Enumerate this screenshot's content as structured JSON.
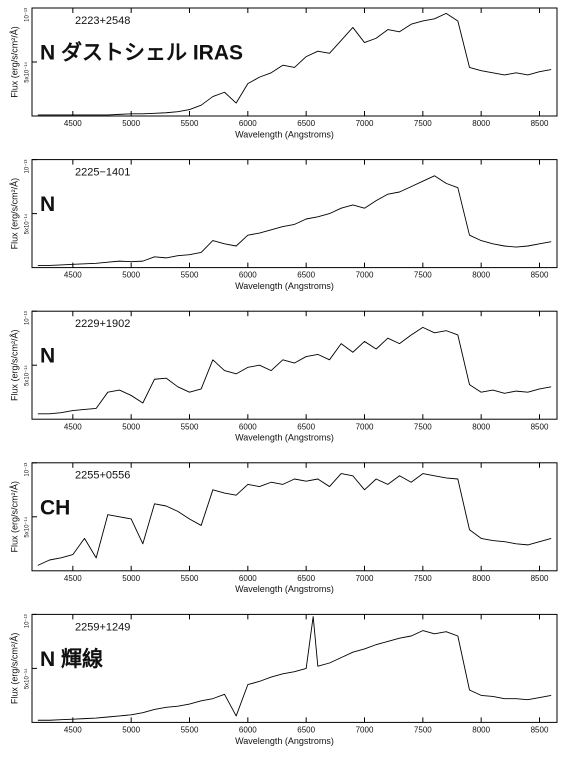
{
  "chart_data": [
    {
      "type": "line",
      "title": "2223+2548",
      "annotation": "N ダストシェル IRAS",
      "xlabel": "Wavelength (Angstroms)",
      "ylabel": "Flux (erg/s/cm²/Å)",
      "xlim": [
        4150,
        8650
      ],
      "ylim": [
        0,
        1e-13
      ],
      "xticks": [
        4500,
        5000,
        5500,
        6000,
        6500,
        7000,
        7500,
        8000,
        8500
      ],
      "yticks": [
        {
          "value": 5e-14,
          "label": "5x10⁻¹⁴"
        },
        {
          "value": 1e-13,
          "label": "10⁻¹³"
        }
      ],
      "color": "#000000",
      "x": [
        4200,
        4300,
        4400,
        4500,
        4600,
        4700,
        4800,
        4900,
        5000,
        5100,
        5200,
        5300,
        5400,
        5500,
        5600,
        5700,
        5800,
        5900,
        6000,
        6100,
        6200,
        6300,
        6400,
        6500,
        6600,
        6700,
        6800,
        6900,
        7000,
        7100,
        7200,
        7300,
        7400,
        7500,
        7600,
        7700,
        7800,
        7900,
        8000,
        8100,
        8200,
        8300,
        8400,
        8500,
        8600
      ],
      "values": [
        1e-15,
        1e-15,
        1e-15,
        1e-15,
        1e-15,
        1e-15,
        1e-15,
        1.5e-15,
        2e-15,
        2e-15,
        2.5e-15,
        3e-15,
        4e-15,
        6e-15,
        1e-14,
        1.8e-14,
        2.2e-14,
        1.2e-14,
        3e-14,
        3.6e-14,
        4e-14,
        4.7e-14,
        4.5e-14,
        5.5e-14,
        6e-14,
        5.8e-14,
        7e-14,
        8.2e-14,
        6.8e-14,
        7.2e-14,
        8e-14,
        7.8e-14,
        8.5e-14,
        8.8e-14,
        9e-14,
        9.5e-14,
        8.8e-14,
        4.5e-14,
        4.2e-14,
        4e-14,
        3.8e-14,
        4e-14,
        3.8e-14,
        4.1e-14,
        4.3e-14
      ]
    },
    {
      "type": "line",
      "title": "2225−1401",
      "annotation": "N",
      "xlabel": "Wavelength (Angstroms)",
      "ylabel": "Flux (erg/s/cm²/Å)",
      "xlim": [
        4150,
        8650
      ],
      "ylim": [
        0,
        1e-13
      ],
      "xticks": [
        4500,
        5000,
        5500,
        6000,
        6500,
        7000,
        7500,
        8000,
        8500
      ],
      "yticks": [
        {
          "value": 5e-14,
          "label": "5x10⁻¹⁴"
        },
        {
          "value": 1e-13,
          "label": "10⁻¹³"
        }
      ],
      "color": "#000000",
      "x": [
        4200,
        4300,
        4400,
        4500,
        4600,
        4700,
        4800,
        4900,
        5000,
        5100,
        5200,
        5300,
        5400,
        5500,
        5600,
        5700,
        5800,
        5900,
        6000,
        6100,
        6200,
        6300,
        6400,
        6500,
        6600,
        6700,
        6800,
        6900,
        7000,
        7100,
        7200,
        7300,
        7400,
        7500,
        7600,
        7700,
        7800,
        7900,
        8000,
        8100,
        8200,
        8300,
        8400,
        8500,
        8600
      ],
      "values": [
        2e-15,
        2e-15,
        2.5e-15,
        3e-15,
        3.5e-15,
        4e-15,
        5e-15,
        6e-15,
        5.5e-15,
        6e-15,
        1e-14,
        9e-15,
        1.1e-14,
        1.2e-14,
        1.4e-14,
        2.5e-14,
        2.2e-14,
        2e-14,
        3e-14,
        3.2e-14,
        3.5e-14,
        3.8e-14,
        4e-14,
        4.5e-14,
        4.7e-14,
        5e-14,
        5.5e-14,
        5.8e-14,
        5.5e-14,
        6.2e-14,
        6.8e-14,
        7e-14,
        7.5e-14,
        8e-14,
        8.5e-14,
        7.8e-14,
        7.4e-14,
        3e-14,
        2.5e-14,
        2.2e-14,
        2e-14,
        1.9e-14,
        2e-14,
        2.2e-14,
        2.4e-14
      ]
    },
    {
      "type": "line",
      "title": "2229+1902",
      "annotation": "N",
      "xlabel": "Wavelength (Angstroms)",
      "ylabel": "Flux (erg/s/cm²/Å)",
      "xlim": [
        4150,
        8650
      ],
      "ylim": [
        0,
        1e-13
      ],
      "xticks": [
        4500,
        5000,
        5500,
        6000,
        6500,
        7000,
        7500,
        8000,
        8500
      ],
      "yticks": [
        {
          "value": 5e-14,
          "label": "5x10⁻¹⁴"
        },
        {
          "value": 1e-13,
          "label": "10⁻¹³"
        }
      ],
      "color": "#000000",
      "x": [
        4200,
        4300,
        4400,
        4500,
        4600,
        4700,
        4800,
        4900,
        5000,
        5100,
        5200,
        5300,
        5400,
        5500,
        5600,
        5700,
        5800,
        5900,
        6000,
        6100,
        6200,
        6300,
        6400,
        6500,
        6600,
        6700,
        6800,
        6900,
        7000,
        7100,
        7200,
        7300,
        7400,
        7500,
        7600,
        7700,
        7800,
        7900,
        8000,
        8100,
        8200,
        8300,
        8400,
        8500,
        8600
      ],
      "values": [
        5e-15,
        5e-15,
        6e-15,
        8e-15,
        9e-15,
        1e-14,
        2.5e-14,
        2.7e-14,
        2.2e-14,
        1.5e-14,
        3.7e-14,
        3.8e-14,
        3e-14,
        2.5e-14,
        2.8e-14,
        5.5e-14,
        4.5e-14,
        4.2e-14,
        4.8e-14,
        5e-14,
        4.5e-14,
        5.5e-14,
        5.2e-14,
        5.8e-14,
        6e-14,
        5.5e-14,
        7e-14,
        6.2e-14,
        7.2e-14,
        6.5e-14,
        7.5e-14,
        7e-14,
        7.8e-14,
        8.5e-14,
        8e-14,
        8.2e-14,
        7.8e-14,
        3.2e-14,
        2.5e-14,
        2.7e-14,
        2.4e-14,
        2.6e-14,
        2.5e-14,
        2.8e-14,
        3e-14
      ]
    },
    {
      "type": "line",
      "title": "2255+0556",
      "annotation": "CH",
      "xlabel": "Wavelength (Angstroms)",
      "ylabel": "Flux (erg/s/cm²/Å)",
      "xlim": [
        4150,
        8650
      ],
      "ylim": [
        0,
        1e-13
      ],
      "xticks": [
        4500,
        5000,
        5500,
        6000,
        6500,
        7000,
        7500,
        8000,
        8500
      ],
      "yticks": [
        {
          "value": 5e-14,
          "label": "5x10⁻¹⁴"
        },
        {
          "value": 1e-13,
          "label": "10⁻¹³"
        }
      ],
      "color": "#000000",
      "x": [
        4200,
        4300,
        4400,
        4500,
        4600,
        4700,
        4800,
        4900,
        5000,
        5100,
        5200,
        5300,
        5400,
        5500,
        5600,
        5700,
        5800,
        5900,
        6000,
        6100,
        6200,
        6300,
        6400,
        6500,
        6600,
        6700,
        6800,
        6900,
        7000,
        7100,
        7200,
        7300,
        7400,
        7500,
        7600,
        7700,
        7800,
        7900,
        8000,
        8100,
        8200,
        8300,
        8400,
        8500,
        8600
      ],
      "values": [
        5e-15,
        1e-14,
        1.2e-14,
        1.5e-14,
        3e-14,
        1.2e-14,
        5.2e-14,
        5e-14,
        4.8e-14,
        2.5e-14,
        6.2e-14,
        6e-14,
        5.5e-14,
        4.8e-14,
        4.2e-14,
        7.5e-14,
        7.2e-14,
        7e-14,
        8e-14,
        7.8e-14,
        8.2e-14,
        8e-14,
        8.5e-14,
        8.3e-14,
        8.5e-14,
        7.8e-14,
        9e-14,
        8.8e-14,
        7.5e-14,
        8.5e-14,
        8e-14,
        8.8e-14,
        8.2e-14,
        9e-14,
        8.8e-14,
        8.6e-14,
        8.5e-14,
        3.8e-14,
        3e-14,
        2.8e-14,
        2.7e-14,
        2.5e-14,
        2.4e-14,
        2.7e-14,
        3e-14
      ]
    },
    {
      "type": "line",
      "title": "2259+1249",
      "annotation": "N 輝線",
      "xlabel": "Wavelength (Angstroms)",
      "ylabel": "Flux (erg/s/cm²/Å)",
      "xlim": [
        4150,
        8650
      ],
      "ylim": [
        0,
        1e-13
      ],
      "xticks": [
        4500,
        5000,
        5500,
        6000,
        6500,
        7000,
        7500,
        8000,
        8500
      ],
      "yticks": [
        {
          "value": 5e-14,
          "label": "5x10⁻¹⁴"
        },
        {
          "value": 1e-13,
          "label": "10⁻¹³"
        }
      ],
      "color": "#000000",
      "x": [
        4200,
        4300,
        4400,
        4500,
        4600,
        4700,
        4800,
        4900,
        5000,
        5100,
        5200,
        5300,
        5400,
        5500,
        5600,
        5700,
        5800,
        5900,
        6000,
        6100,
        6200,
        6300,
        6400,
        6500,
        6560,
        6600,
        6700,
        6800,
        6900,
        7000,
        7100,
        7200,
        7300,
        7400,
        7500,
        7600,
        7700,
        7800,
        7900,
        8000,
        8100,
        8200,
        8300,
        8400,
        8500,
        8600
      ],
      "values": [
        2e-15,
        2e-15,
        2.5e-15,
        3e-15,
        3.5e-15,
        4e-15,
        5e-15,
        6e-15,
        7e-15,
        9e-15,
        1.2e-14,
        1.4e-14,
        1.5e-14,
        1.7e-14,
        2e-14,
        2.2e-14,
        2.6e-14,
        6e-15,
        3.5e-14,
        3.8e-14,
        4.2e-14,
        4.5e-14,
        4.7e-14,
        5e-14,
        9.8e-14,
        5.2e-14,
        5.5e-14,
        6e-14,
        6.5e-14,
        6.8e-14,
        7.2e-14,
        7.5e-14,
        7.8e-14,
        8e-14,
        8.5e-14,
        8.2e-14,
        8.4e-14,
        8e-14,
        3e-14,
        2.5e-14,
        2.4e-14,
        2.2e-14,
        2.2e-14,
        2.1e-14,
        2.3e-14,
        2.5e-14
      ]
    }
  ]
}
